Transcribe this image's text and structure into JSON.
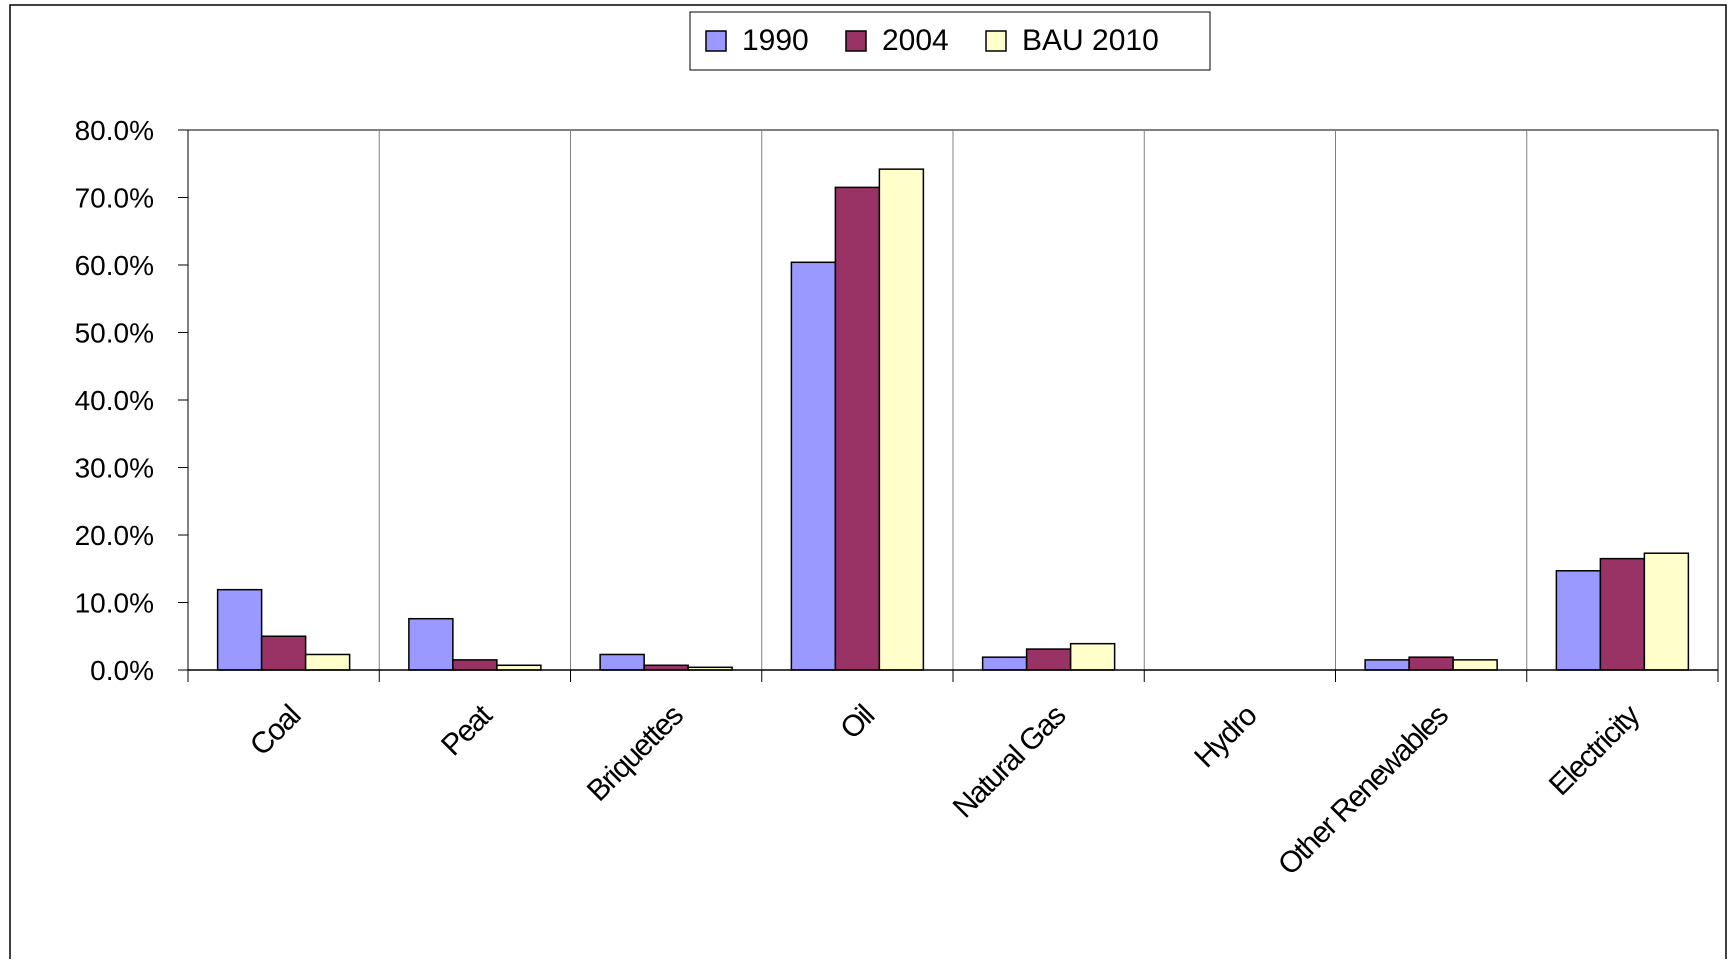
{
  "chart_data": {
    "type": "bar",
    "categories": [
      "Coal",
      "Peat",
      "Briquettes",
      "Oil",
      "Natural Gas",
      "Hydro",
      "Other Renewables",
      "Electricity"
    ],
    "series": [
      {
        "name": "1990",
        "color": "#9999FF",
        "values": [
          11.9,
          7.6,
          2.3,
          60.4,
          1.9,
          0.0,
          1.5,
          14.7
        ]
      },
      {
        "name": "2004",
        "color": "#993366",
        "values": [
          5.0,
          1.5,
          0.7,
          71.5,
          3.1,
          0.0,
          1.9,
          16.5
        ]
      },
      {
        "name": "BAU 2010",
        "color": "#FFFFCC",
        "values": [
          2.3,
          0.7,
          0.4,
          74.2,
          3.9,
          0.0,
          1.5,
          17.3
        ]
      }
    ],
    "ylim": [
      0,
      80
    ],
    "yticks": [
      "0.0%",
      "10.0%",
      "20.0%",
      "30.0%",
      "40.0%",
      "50.0%",
      "60.0%",
      "70.0%",
      "80.0%"
    ],
    "title": "",
    "xlabel": "",
    "ylabel": "",
    "legend_position": "top-center",
    "grid": "vertical category separators"
  }
}
